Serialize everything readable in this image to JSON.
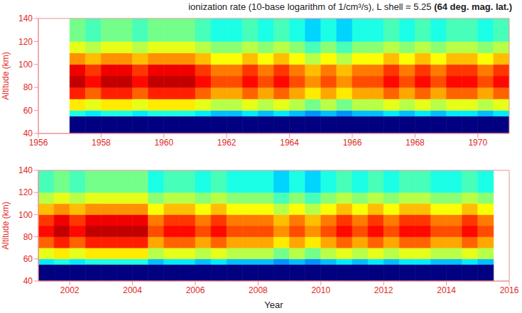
{
  "chart_data": [
    {
      "type": "heatmap",
      "title": "ionization rate (10-base logarithm of 1/cm³/s), L shell =  5.25",
      "subtitle": "(64 deg. mag. lat.)",
      "y_label": "Altitude (km)",
      "xlim": [
        1956,
        1971
      ],
      "xticks": [
        1956,
        1958,
        1960,
        1962,
        1964,
        1966,
        1968,
        1970
      ],
      "ylim": [
        40,
        140
      ],
      "yticks": [
        40,
        60,
        80,
        100,
        120,
        140
      ],
      "color_range": [
        -2,
        2.5
      ],
      "x_edges": [
        1957,
        1957.5,
        1958,
        1958.5,
        1959,
        1959.5,
        1960,
        1960.5,
        1961,
        1961.5,
        1962,
        1962.5,
        1963,
        1963.5,
        1964,
        1964.5,
        1965,
        1965.5,
        1966,
        1966.5,
        1967,
        1967.5,
        1968,
        1968.5,
        1969,
        1969.5,
        1970,
        1970.5,
        1971
      ],
      "y_edges": [
        40,
        55,
        60,
        70,
        80,
        90,
        100,
        110,
        120,
        140
      ],
      "cells": [
        [
          -3,
          -3,
          -3,
          -3,
          -3,
          -3,
          -3,
          -3,
          -3,
          -3,
          -3,
          -3,
          -3,
          -3,
          -3,
          -3,
          -3,
          -3,
          -3,
          -3,
          -3,
          -3,
          -3,
          -3,
          -3,
          -3,
          -3,
          -3
        ],
        [
          -0.2,
          -0.4,
          -0.2,
          -0.2,
          -0.4,
          -0.2,
          -0.2,
          -0.2,
          -0.4,
          -0.6,
          -0.6,
          -0.4,
          -0.6,
          -0.4,
          -0.6,
          -0.8,
          -0.6,
          -0.8,
          -0.6,
          -0.6,
          -0.4,
          -0.6,
          -0.4,
          -0.6,
          -0.4,
          -0.4,
          -0.6,
          -0.4
        ],
        [
          0.9,
          0.7,
          0.9,
          0.9,
          0.7,
          0.9,
          0.9,
          0.9,
          0.7,
          0.5,
          0.5,
          0.7,
          0.5,
          0.7,
          0.5,
          0.2,
          0.5,
          0.2,
          0.5,
          0.5,
          0.7,
          0.5,
          0.7,
          0.5,
          0.7,
          0.7,
          0.5,
          0.7
        ],
        [
          1.8,
          1.5,
          1.8,
          1.8,
          1.5,
          1.8,
          1.8,
          1.8,
          1.5,
          1.2,
          1.2,
          1.5,
          1.2,
          1.5,
          1.2,
          0.9,
          1.2,
          0.9,
          1.2,
          1.2,
          1.5,
          1.2,
          1.5,
          1.2,
          1.5,
          1.5,
          1.2,
          1.5
        ],
        [
          2.2,
          1.9,
          2.2,
          2.2,
          1.9,
          2.2,
          2.2,
          2.2,
          1.9,
          1.6,
          1.6,
          1.9,
          1.6,
          1.9,
          1.6,
          1.3,
          1.6,
          1.3,
          1.6,
          1.6,
          1.9,
          1.6,
          1.9,
          1.6,
          1.9,
          1.9,
          1.6,
          1.9
        ],
        [
          2.0,
          1.7,
          2.0,
          2.0,
          1.7,
          2.0,
          2.0,
          2.0,
          1.7,
          1.4,
          1.4,
          1.7,
          1.4,
          1.7,
          1.4,
          1.1,
          1.4,
          1.1,
          1.4,
          1.4,
          1.7,
          1.4,
          1.7,
          1.4,
          1.7,
          1.7,
          1.4,
          1.7
        ],
        [
          1.3,
          1.1,
          1.3,
          1.3,
          1.1,
          1.3,
          1.3,
          1.3,
          1.1,
          0.8,
          0.8,
          1.1,
          0.8,
          1.1,
          0.8,
          0.5,
          0.8,
          0.5,
          0.8,
          0.8,
          1.1,
          0.8,
          1.1,
          0.8,
          1.1,
          1.1,
          0.8,
          1.1
        ],
        [
          0.7,
          0.5,
          0.7,
          0.7,
          0.5,
          0.7,
          0.7,
          0.7,
          0.5,
          0.3,
          0.3,
          0.5,
          0.3,
          0.5,
          0.3,
          0.0,
          0.3,
          0.0,
          0.3,
          0.3,
          0.5,
          0.3,
          0.5,
          0.3,
          0.5,
          0.5,
          0.3,
          0.5
        ],
        [
          0.2,
          0.0,
          0.2,
          0.2,
          0.0,
          0.2,
          0.2,
          0.2,
          0.0,
          -0.2,
          -0.2,
          0.0,
          -0.2,
          0.0,
          -0.2,
          -0.5,
          -0.2,
          -0.5,
          -0.2,
          -0.2,
          0.0,
          -0.2,
          0.0,
          -0.2,
          0.0,
          0.0,
          -0.2,
          0.0
        ]
      ]
    },
    {
      "type": "heatmap",
      "x_label": "Year",
      "y_label": "Altitude (km)",
      "xlim": [
        2001,
        2016
      ],
      "xticks": [
        2002,
        2004,
        2006,
        2008,
        2010,
        2012,
        2014,
        2016
      ],
      "ylim": [
        40,
        140
      ],
      "yticks": [
        40,
        60,
        80,
        100,
        120,
        140
      ],
      "color_range": [
        -2,
        2.5
      ],
      "x_edges": [
        2001,
        2001.5,
        2002,
        2002.5,
        2003,
        2003.5,
        2004,
        2004.5,
        2005,
        2005.5,
        2006,
        2006.5,
        2007,
        2007.5,
        2008,
        2008.5,
        2009,
        2009.5,
        2010,
        2010.5,
        2011,
        2011.5,
        2012,
        2012.5,
        2013,
        2013.5,
        2014,
        2014.5,
        2015,
        2015.5
      ],
      "y_edges": [
        40,
        55,
        60,
        70,
        80,
        90,
        100,
        110,
        120,
        140
      ],
      "cells": [
        [
          -3,
          -3,
          -3,
          -3,
          -3,
          -3,
          -3,
          -3,
          -3,
          -3,
          -3,
          -3,
          -3,
          -3,
          -3,
          -3,
          -3,
          -3,
          -3,
          -3,
          -3,
          -3,
          -3,
          -3,
          -3,
          -3,
          -3,
          -3,
          -3
        ],
        [
          -0.4,
          -0.2,
          -0.4,
          -0.2,
          -0.2,
          -0.2,
          -0.2,
          -0.6,
          -0.4,
          -0.4,
          -0.6,
          -0.4,
          -0.6,
          -0.6,
          -0.6,
          -0.8,
          -0.6,
          -0.8,
          -0.6,
          -0.4,
          -0.6,
          -0.4,
          -0.6,
          -0.4,
          -0.4,
          -0.6,
          -0.6,
          -0.4,
          -0.6
        ],
        [
          0.7,
          0.9,
          0.7,
          0.9,
          0.9,
          0.9,
          0.9,
          0.5,
          0.7,
          0.7,
          0.5,
          0.7,
          0.5,
          0.5,
          0.5,
          0.2,
          0.5,
          0.2,
          0.5,
          0.7,
          0.5,
          0.7,
          0.5,
          0.7,
          0.7,
          0.5,
          0.5,
          0.7,
          0.5
        ],
        [
          1.5,
          1.8,
          1.5,
          1.8,
          1.8,
          1.8,
          1.8,
          1.2,
          1.5,
          1.5,
          1.2,
          1.5,
          1.2,
          1.2,
          1.2,
          0.9,
          1.2,
          0.9,
          1.2,
          1.5,
          1.2,
          1.5,
          1.2,
          1.5,
          1.5,
          1.2,
          1.2,
          1.5,
          1.2
        ],
        [
          1.9,
          2.2,
          1.9,
          2.2,
          2.2,
          2.2,
          2.2,
          1.6,
          1.9,
          1.9,
          1.6,
          1.9,
          1.6,
          1.6,
          1.6,
          1.3,
          1.6,
          1.3,
          1.6,
          1.9,
          1.6,
          1.9,
          1.6,
          1.9,
          1.9,
          1.6,
          1.6,
          1.9,
          1.6
        ],
        [
          1.7,
          2.0,
          1.7,
          2.0,
          2.0,
          2.0,
          2.0,
          1.4,
          1.7,
          1.7,
          1.4,
          1.7,
          1.4,
          1.4,
          1.4,
          1.1,
          1.4,
          1.1,
          1.4,
          1.7,
          1.4,
          1.7,
          1.4,
          1.7,
          1.7,
          1.4,
          1.4,
          1.7,
          1.4
        ],
        [
          1.1,
          1.3,
          1.1,
          1.3,
          1.3,
          1.3,
          1.3,
          0.8,
          1.1,
          1.1,
          0.8,
          1.1,
          0.8,
          0.8,
          0.8,
          0.5,
          0.8,
          0.5,
          0.8,
          1.1,
          0.8,
          1.1,
          0.8,
          1.1,
          1.1,
          0.8,
          0.8,
          1.1,
          0.8
        ],
        [
          0.5,
          0.7,
          0.5,
          0.7,
          0.7,
          0.7,
          0.7,
          0.3,
          0.5,
          0.5,
          0.3,
          0.5,
          0.3,
          0.3,
          0.3,
          0.0,
          0.3,
          0.0,
          0.3,
          0.5,
          0.3,
          0.5,
          0.3,
          0.5,
          0.5,
          0.3,
          0.3,
          0.5,
          0.3
        ],
        [
          0.0,
          0.2,
          0.0,
          0.2,
          0.2,
          0.2,
          0.2,
          -0.2,
          0.0,
          0.0,
          -0.2,
          0.0,
          -0.2,
          -0.2,
          -0.2,
          -0.5,
          -0.2,
          -0.5,
          -0.2,
          0.0,
          -0.2,
          0.0,
          -0.2,
          0.0,
          0.0,
          -0.2,
          -0.2,
          0.0,
          -0.2
        ]
      ]
    }
  ]
}
